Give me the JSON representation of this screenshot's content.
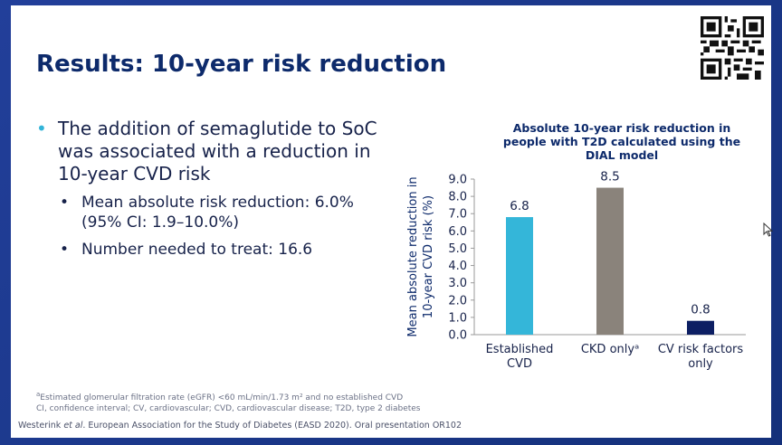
{
  "slide": {
    "title": "Results: 10-year risk reduction",
    "bullets": {
      "main": "The addition of semaglutide to SoC was associated with a reduction in 10-year CVD risk",
      "sub": [
        "Mean absolute risk reduction: 6.0% (95% CI: 1.9–10.0%)",
        "Number needed to treat: 16.6"
      ]
    },
    "footnote": {
      "marker": "a",
      "line1": "Estimated glomerular filtration rate (eGFR) <60 mL/min/1.73 m² and no established CVD",
      "line2": "CI, confidence interval; CV, cardiovascular; CVD, cardiovascular disease; T2D, type 2 diabetes"
    },
    "reference": {
      "author": "Westerink",
      "etal": "et al",
      "rest": ". European Association for the Study of Diabetes (EASD 2020). Oral presentation OR102"
    },
    "colors": {
      "title": "#0d2a6b",
      "bullet": "#32b4d8"
    }
  },
  "chart_data": {
    "type": "bar",
    "title": "Absolute 10-year risk reduction in people with T2D calculated using the DIAL model",
    "title_lines": [
      "Absolute 10-year risk reduction in",
      "people with T2D calculated using the",
      "DIAL model"
    ],
    "ylabel": "Mean absolute reduction in 10-year CVD risk (%)",
    "ylabel_lines": [
      "Mean absolute reduction in",
      "10-year CVD risk (%)"
    ],
    "categories": [
      "Established CVD",
      "CKD onlyᵃ",
      "CV risk factors only"
    ],
    "category_lines": [
      [
        "Established",
        "CVD"
      ],
      [
        "CKD onlyᵃ"
      ],
      [
        "CV risk factors",
        "only"
      ]
    ],
    "values": [
      6.8,
      8.5,
      0.8
    ],
    "value_labels": [
      "6.8",
      "8.5",
      "0.8"
    ],
    "colors": [
      "#34b6d9",
      "#8a837b",
      "#0d1f63"
    ],
    "ylim": [
      0,
      9
    ],
    "yticks": [
      0,
      1,
      2,
      3,
      4,
      5,
      6,
      7,
      8,
      9
    ],
    "ytick_labels": [
      "0.0",
      "1.0",
      "2.0",
      "3.0",
      "4.0",
      "5.0",
      "6.0",
      "7.0",
      "8.0",
      "9.0"
    ],
    "grid": false,
    "legend": "none"
  }
}
